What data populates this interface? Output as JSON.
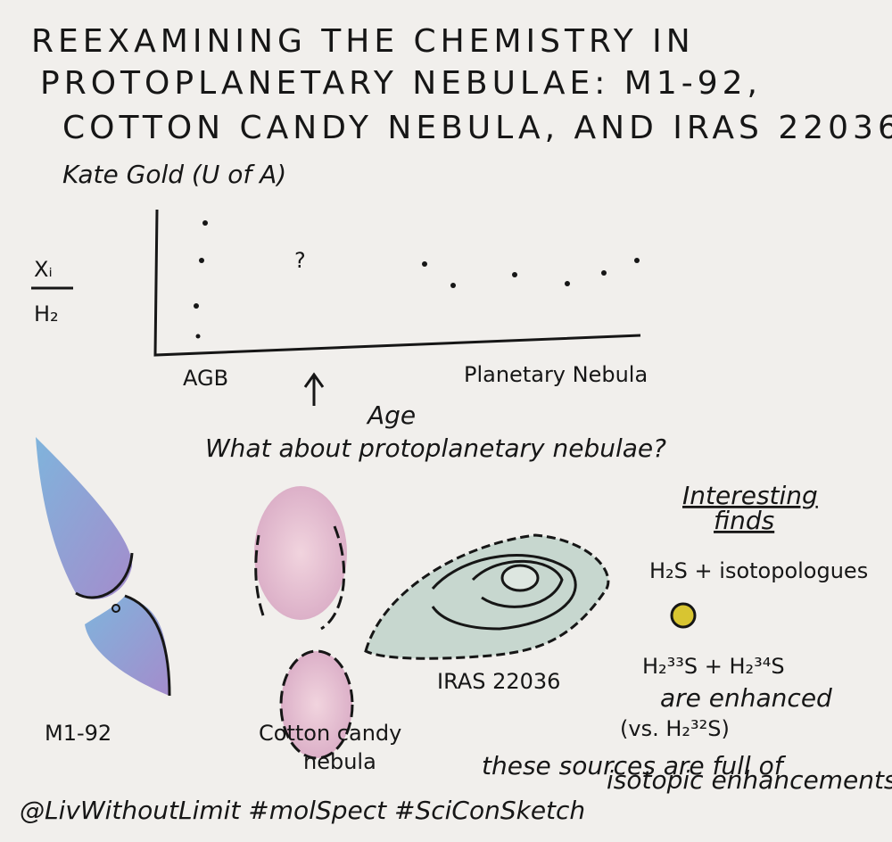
{
  "header": {
    "title_lines": [
      "REEXAMINING THE CHEMISTRY IN",
      "PROTOPLANETARY NEBULAE: M1-92,",
      "COTTON CANDY NEBULA, AND IRAS 22036"
    ],
    "author": "Kate Gold (U of A)"
  },
  "sketch_chart": {
    "y_label": {
      "numerator": "Xᵢ",
      "denominator": "H₂"
    },
    "question": "?",
    "x_start": "AGB",
    "x_end": "Planetary Nebula",
    "x_label": "Age",
    "caption": "What about protoplanetary nebulae?"
  },
  "nebulae": {
    "m1_92": "M1-92",
    "cotton_candy": [
      "Cotton candy",
      "nebula"
    ],
    "iras": "IRAS 22036"
  },
  "findings": {
    "heading": [
      "Interesting",
      "finds"
    ],
    "lines": [
      "H₂S + isotopologues",
      "H₂³³S + H₂³⁴S",
      "are enhanced",
      "(vs. H₂³²S)"
    ],
    "note": [
      "these sources are full of",
      "isotopic enhancements"
    ]
  },
  "signature": "@LivWithoutLimit #molSpect #SciConSketch"
}
